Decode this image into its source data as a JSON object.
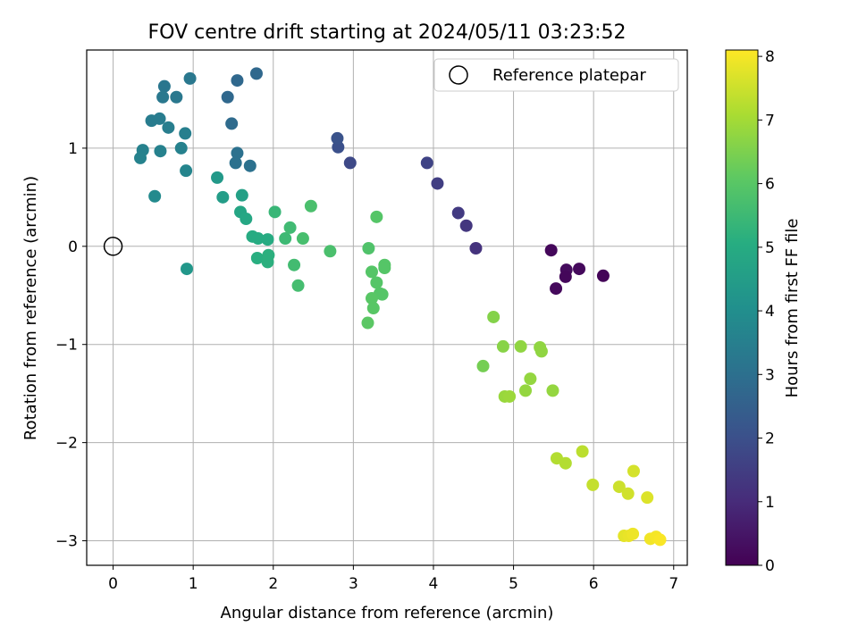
{
  "chart_data": {
    "type": "scatter",
    "title": "FOV centre drift starting at 2024/05/11 03:23:52",
    "xlabel": "Angular distance from reference (arcmin)",
    "ylabel": "Rotation from reference (arcmin)",
    "xlim": [
      -0.33,
      7.17
    ],
    "ylim": [
      -3.25,
      2.0
    ],
    "xticks": [
      0,
      1,
      2,
      3,
      4,
      5,
      6,
      7
    ],
    "yticks": [
      1,
      0,
      -1,
      -2,
      -3
    ],
    "xtick_labels": [
      "0",
      "1",
      "2",
      "3",
      "4",
      "5",
      "6",
      "7"
    ],
    "ytick_labels": [
      "1",
      "0",
      "−1",
      "−2",
      "−3"
    ],
    "grid": true,
    "legend": {
      "position": "top-right",
      "label": "Reference platepar"
    },
    "reference_point": {
      "x": 0,
      "y": 0
    },
    "colorbar": {
      "label": "Hours from first FF file",
      "colormap": "viridis",
      "range": [
        0,
        8.1
      ],
      "ticks": [
        0,
        1,
        2,
        3,
        4,
        5,
        6,
        7,
        8
      ],
      "tick_labels": [
        "0",
        "1",
        "2",
        "3",
        "4",
        "5",
        "6",
        "7",
        "8"
      ]
    },
    "points": [
      {
        "x": 5.47,
        "y": -0.04,
        "hours": 0.15
      },
      {
        "x": 5.66,
        "y": -0.24,
        "hours": 0.25
      },
      {
        "x": 5.82,
        "y": -0.23,
        "hours": 0.2
      },
      {
        "x": 6.12,
        "y": -0.3,
        "hours": 0.1
      },
      {
        "x": 5.65,
        "y": -0.31,
        "hours": 0.15
      },
      {
        "x": 5.53,
        "y": -0.43,
        "hours": 0.2
      },
      {
        "x": 4.53,
        "y": -0.02,
        "hours": 1.2
      },
      {
        "x": 4.41,
        "y": 0.21,
        "hours": 1.3
      },
      {
        "x": 4.31,
        "y": 0.34,
        "hours": 1.4
      },
      {
        "x": 4.05,
        "y": 0.64,
        "hours": 1.5
      },
      {
        "x": 3.92,
        "y": 0.85,
        "hours": 1.65
      },
      {
        "x": 2.96,
        "y": 0.85,
        "hours": 1.8
      },
      {
        "x": 2.81,
        "y": 1.01,
        "hours": 2.0
      },
      {
        "x": 2.8,
        "y": 1.1,
        "hours": 2.1
      },
      {
        "x": 1.79,
        "y": 1.76,
        "hours": 2.75
      },
      {
        "x": 1.55,
        "y": 1.69,
        "hours": 2.75
      },
      {
        "x": 1.43,
        "y": 1.52,
        "hours": 2.75
      },
      {
        "x": 1.48,
        "y": 1.25,
        "hours": 2.85
      },
      {
        "x": 1.55,
        "y": 0.95,
        "hours": 3.05
      },
      {
        "x": 1.53,
        "y": 0.85,
        "hours": 3.05
      },
      {
        "x": 1.71,
        "y": 0.82,
        "hours": 3.05
      },
      {
        "x": 0.64,
        "y": 1.63,
        "hours": 3.2
      },
      {
        "x": 0.62,
        "y": 1.52,
        "hours": 3.25
      },
      {
        "x": 0.79,
        "y": 1.52,
        "hours": 3.25
      },
      {
        "x": 0.96,
        "y": 1.71,
        "hours": 3.25
      },
      {
        "x": 0.48,
        "y": 1.28,
        "hours": 3.4
      },
      {
        "x": 0.58,
        "y": 1.3,
        "hours": 3.4
      },
      {
        "x": 0.69,
        "y": 1.21,
        "hours": 3.45
      },
      {
        "x": 0.9,
        "y": 1.15,
        "hours": 3.5
      },
      {
        "x": 0.37,
        "y": 0.98,
        "hours": 3.55
      },
      {
        "x": 0.85,
        "y": 1.0,
        "hours": 3.55
      },
      {
        "x": 0.59,
        "y": 0.97,
        "hours": 3.55
      },
      {
        "x": 0.34,
        "y": 0.9,
        "hours": 3.6
      },
      {
        "x": 0.91,
        "y": 0.77,
        "hours": 3.7
      },
      {
        "x": 0.52,
        "y": 0.51,
        "hours": 3.85
      },
      {
        "x": 0.92,
        "y": -0.23,
        "hours": 4.3
      },
      {
        "x": 1.3,
        "y": 0.7,
        "hours": 4.35
      },
      {
        "x": 1.37,
        "y": 0.5,
        "hours": 4.5
      },
      {
        "x": 1.61,
        "y": 0.52,
        "hours": 4.6
      },
      {
        "x": 1.59,
        "y": 0.35,
        "hours": 4.8
      },
      {
        "x": 1.66,
        "y": 0.28,
        "hours": 4.85
      },
      {
        "x": 1.74,
        "y": 0.1,
        "hours": 5.0
      },
      {
        "x": 1.81,
        "y": 0.08,
        "hours": 5.0
      },
      {
        "x": 1.93,
        "y": 0.07,
        "hours": 5.0
      },
      {
        "x": 1.8,
        "y": -0.12,
        "hours": 5.1
      },
      {
        "x": 1.94,
        "y": -0.09,
        "hours": 5.15
      },
      {
        "x": 1.93,
        "y": -0.16,
        "hours": 5.15
      },
      {
        "x": 2.02,
        "y": 0.35,
        "hours": 5.4
      },
      {
        "x": 2.15,
        "y": 0.08,
        "hours": 5.5
      },
      {
        "x": 2.21,
        "y": 0.19,
        "hours": 5.55
      },
      {
        "x": 2.26,
        "y": -0.19,
        "hours": 5.6
      },
      {
        "x": 2.31,
        "y": -0.4,
        "hours": 5.65
      },
      {
        "x": 2.37,
        "y": 0.08,
        "hours": 5.7
      },
      {
        "x": 2.47,
        "y": 0.41,
        "hours": 5.75
      },
      {
        "x": 2.71,
        "y": -0.05,
        "hours": 5.75
      },
      {
        "x": 3.19,
        "y": -0.02,
        "hours": 5.85
      },
      {
        "x": 3.29,
        "y": 0.3,
        "hours": 5.95
      },
      {
        "x": 3.23,
        "y": -0.26,
        "hours": 5.95
      },
      {
        "x": 3.39,
        "y": -0.19,
        "hours": 5.95
      },
      {
        "x": 3.39,
        "y": -0.22,
        "hours": 5.95
      },
      {
        "x": 3.29,
        "y": -0.37,
        "hours": 5.95
      },
      {
        "x": 3.33,
        "y": -0.48,
        "hours": 5.95
      },
      {
        "x": 3.36,
        "y": -0.49,
        "hours": 5.95
      },
      {
        "x": 3.23,
        "y": -0.53,
        "hours": 6.0
      },
      {
        "x": 3.25,
        "y": -0.63,
        "hours": 6.0
      },
      {
        "x": 3.18,
        "y": -0.78,
        "hours": 6.05
      },
      {
        "x": 4.75,
        "y": -0.72,
        "hours": 6.6
      },
      {
        "x": 4.62,
        "y": -1.22,
        "hours": 6.4
      },
      {
        "x": 4.87,
        "y": -1.02,
        "hours": 6.65
      },
      {
        "x": 5.09,
        "y": -1.02,
        "hours": 6.75
      },
      {
        "x": 5.33,
        "y": -1.03,
        "hours": 6.75
      },
      {
        "x": 5.35,
        "y": -1.07,
        "hours": 6.75
      },
      {
        "x": 5.21,
        "y": -1.35,
        "hours": 6.8
      },
      {
        "x": 5.15,
        "y": -1.47,
        "hours": 6.8
      },
      {
        "x": 5.49,
        "y": -1.47,
        "hours": 6.8
      },
      {
        "x": 4.89,
        "y": -1.53,
        "hours": 6.85
      },
      {
        "x": 4.95,
        "y": -1.53,
        "hours": 6.9
      },
      {
        "x": 5.54,
        "y": -2.16,
        "hours": 7.2
      },
      {
        "x": 5.65,
        "y": -2.21,
        "hours": 7.2
      },
      {
        "x": 5.86,
        "y": -2.09,
        "hours": 7.3
      },
      {
        "x": 5.99,
        "y": -2.43,
        "hours": 7.4
      },
      {
        "x": 6.32,
        "y": -2.45,
        "hours": 7.5
      },
      {
        "x": 6.43,
        "y": -2.52,
        "hours": 7.55
      },
      {
        "x": 6.5,
        "y": -2.29,
        "hours": 7.6
      },
      {
        "x": 6.67,
        "y": -2.56,
        "hours": 7.7
      },
      {
        "x": 6.38,
        "y": -2.95,
        "hours": 7.8
      },
      {
        "x": 6.44,
        "y": -2.95,
        "hours": 7.85
      },
      {
        "x": 6.49,
        "y": -2.93,
        "hours": 7.9
      },
      {
        "x": 6.71,
        "y": -2.98,
        "hours": 7.95
      },
      {
        "x": 6.78,
        "y": -2.96,
        "hours": 8.0
      },
      {
        "x": 6.83,
        "y": -2.99,
        "hours": 8.05
      }
    ]
  }
}
